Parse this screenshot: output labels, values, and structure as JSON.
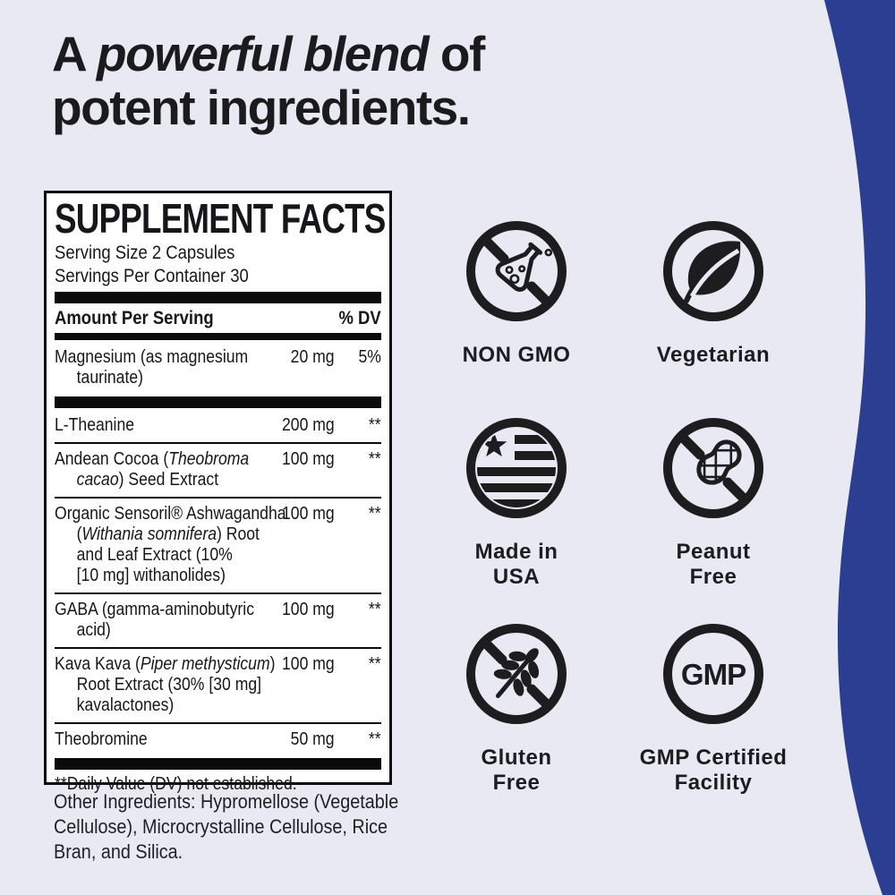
{
  "colors": {
    "background": "#e8e9f3",
    "accent_blue": "#2b3e92",
    "ink": "#1d1c1f",
    "panel_background": "#ffffff"
  },
  "heading": {
    "line1_pre": "A ",
    "line1_italic": "powerful blend",
    "line1_post": " of",
    "line2": "potent ingredients."
  },
  "supplement_facts": {
    "title": "SUPPLEMENT FACTS",
    "serving_size": "Serving Size 2 Capsules",
    "servings_per_container": "Servings Per Container 30",
    "amount_header": "Amount Per Serving",
    "dv_header": "% DV",
    "footnote": "**Daily Value (DV) not established.",
    "rows": [
      {
        "lines": [
          [
            {
              "t": "Magnesium (as magnesium"
            }
          ],
          [
            {
              "t": "taurinate)"
            }
          ]
        ],
        "amount": "20 mg",
        "dv": "5%",
        "bar_after": "thick"
      },
      {
        "lines": [
          [
            {
              "t": "L-Theanine"
            }
          ]
        ],
        "amount": "200 mg",
        "dv": "**",
        "bar_after": "thin"
      },
      {
        "lines": [
          [
            {
              "t": "Andean Cocoa ("
            },
            {
              "t": "Theobroma",
              "i": true
            }
          ],
          [
            {
              "t": "cacao",
              "i": true
            },
            {
              "t": ") Seed Extract"
            }
          ]
        ],
        "amount": "100 mg",
        "dv": "**",
        "bar_after": "thin"
      },
      {
        "lines": [
          [
            {
              "t": "Organic Sensoril® Ashwagandha"
            }
          ],
          [
            {
              "t": "("
            },
            {
              "t": "Withania somnifera",
              "i": true
            },
            {
              "t": ") Root"
            }
          ],
          [
            {
              "t": "and Leaf Extract (10%"
            }
          ],
          [
            {
              "t": "[10 mg] withanolides)"
            }
          ]
        ],
        "amount": "100 mg",
        "dv": "**",
        "bar_after": "thin"
      },
      {
        "lines": [
          [
            {
              "t": "GABA (gamma-aminobutyric"
            }
          ],
          [
            {
              "t": "acid)"
            }
          ]
        ],
        "amount": "100 mg",
        "dv": "**",
        "bar_after": "thin"
      },
      {
        "lines": [
          [
            {
              "t": "Kava Kava ("
            },
            {
              "t": "Piper methysticum",
              "i": true
            },
            {
              "t": ")"
            }
          ],
          [
            {
              "t": "Root Extract (30% [30 mg]"
            }
          ],
          [
            {
              "t": "kavalactones)"
            }
          ]
        ],
        "amount": "100 mg",
        "dv": "**",
        "bar_after": "thin"
      },
      {
        "lines": [
          [
            {
              "t": "Theobromine"
            }
          ]
        ],
        "amount": "50 mg",
        "dv": "**",
        "bar_after": "none"
      }
    ]
  },
  "other_ingredients": "Other Ingredients: Hypromellose (Vegetable\nCellulose), Microcrystalline Cellulose, Rice\nBran, and Silica.",
  "badges": [
    {
      "label": "NON GMO",
      "icon": "no-gmo-flask-icon"
    },
    {
      "label": "Vegetarian",
      "icon": "vegetarian-leaf-icon"
    },
    {
      "label": "Made in\nUSA",
      "icon": "usa-flag-icon"
    },
    {
      "label": "Peanut\nFree",
      "icon": "no-peanut-icon"
    },
    {
      "label": "Gluten\nFree",
      "icon": "no-wheat-icon"
    },
    {
      "label": "GMP Certified\nFacility",
      "icon": "gmp-seal-icon",
      "icon_text": "GMP"
    }
  ]
}
